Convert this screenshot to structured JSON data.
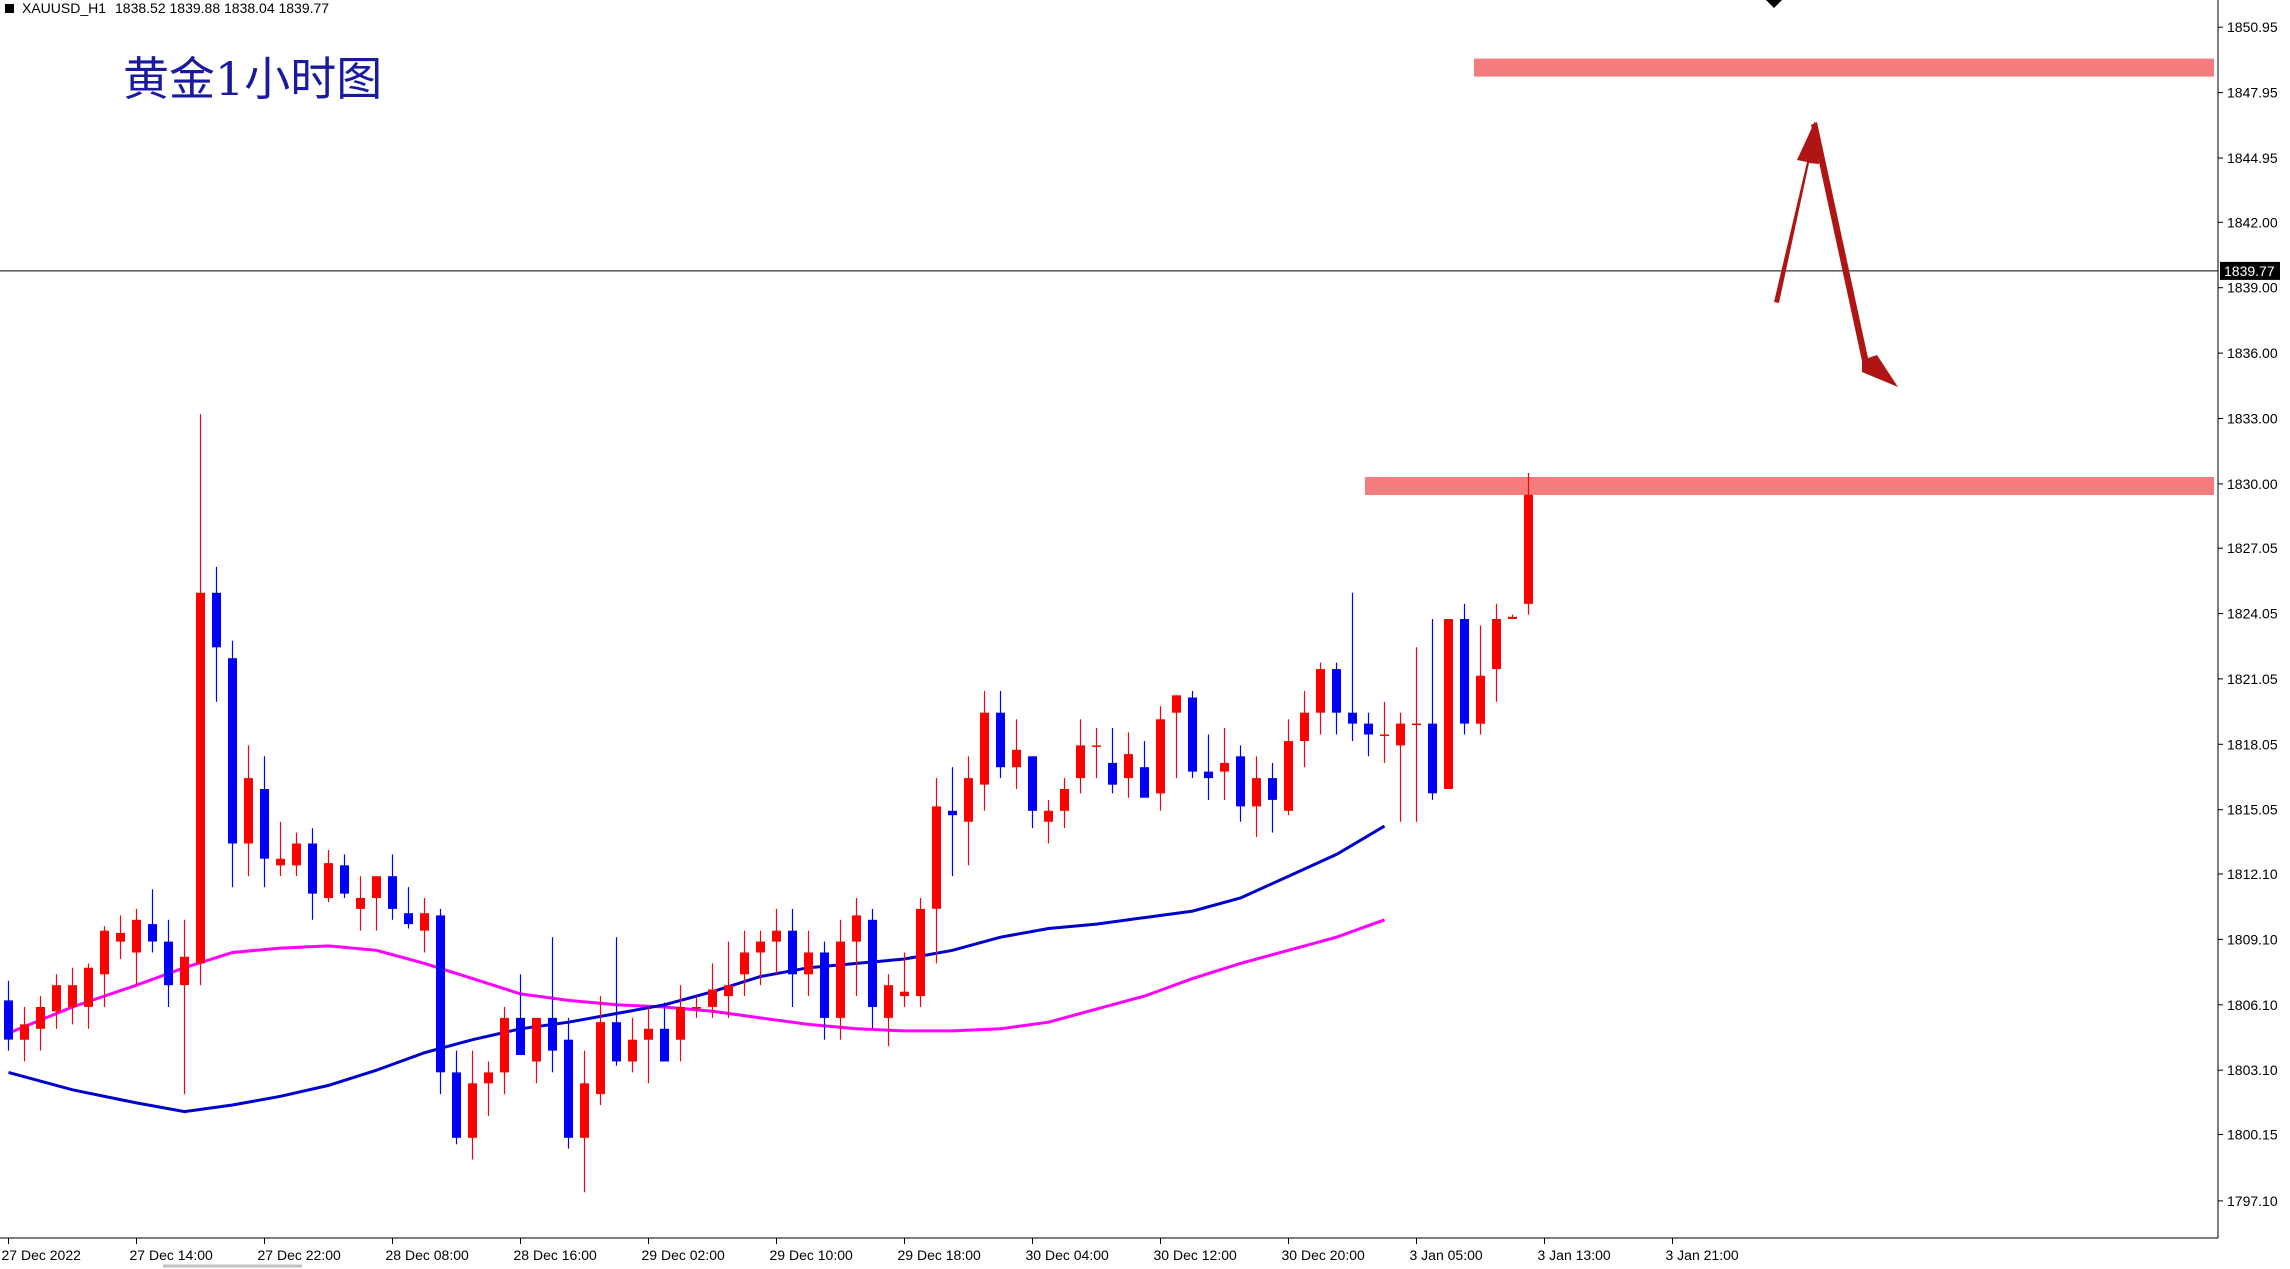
{
  "header": {
    "symbol_label": "XAUUSD_H1",
    "ohlc": "1838.52 1839.88 1838.04 1839.77"
  },
  "chart_title": "黄金1小时图",
  "current_price_label": "1839.77",
  "colors": {
    "bull": "#ff0000",
    "bear": "#0000ff",
    "ma_fast": "#0000cc",
    "ma_slow": "#ff00ff",
    "zone": "#f47c7c",
    "arrow": "#b01515",
    "axis": "#000000",
    "price_line": "#000000"
  },
  "chart_data": {
    "type": "candlestick",
    "y_axis_ticks": [
      1850.95,
      1847.95,
      1844.95,
      1842.0,
      1839.0,
      1836.0,
      1833.0,
      1830.0,
      1827.05,
      1824.05,
      1821.05,
      1818.05,
      1815.05,
      1812.1,
      1809.1,
      1806.1,
      1803.1,
      1800.15,
      1797.1
    ],
    "y_tick_labels": [
      "1850.95",
      "1847.95",
      "1844.95",
      "1842.00",
      "1839.00",
      "1836.00",
      "1833.00",
      "1830.00",
      "1827.05",
      "1824.05",
      "1821.05",
      "1818.05",
      "1815.05",
      "1812.10",
      "1809.10",
      "1806.10",
      "1803.10",
      "1800.15",
      "1797.10"
    ],
    "ylim": [
      1795.4,
      1852.2
    ],
    "x_tick_labels": [
      "27 Dec 2022",
      "27 Dec 14:00",
      "27 Dec 22:00",
      "28 Dec 08:00",
      "28 Dec 16:00",
      "29 Dec 02:00",
      "29 Dec 10:00",
      "29 Dec 18:00",
      "30 Dec 04:00",
      "30 Dec 12:00",
      "30 Dec 20:00",
      "3 Jan 05:00",
      "3 Jan 13:00",
      "3 Jan 21:00"
    ],
    "x_tick_bar_index": [
      0,
      8,
      16,
      24,
      32,
      40,
      48,
      56,
      64,
      72,
      80,
      88,
      96,
      104
    ],
    "candles": [
      [
        1806.3,
        1807.2,
        1804.0,
        1804.5
      ],
      [
        1804.5,
        1806.0,
        1803.5,
        1805.2
      ],
      [
        1805.0,
        1806.5,
        1804.0,
        1806.0
      ],
      [
        1805.8,
        1807.5,
        1805.0,
        1807.0
      ],
      [
        1806.0,
        1807.8,
        1805.2,
        1807.0
      ],
      [
        1806.0,
        1808.0,
        1805.0,
        1807.8
      ],
      [
        1807.5,
        1809.7,
        1806.0,
        1809.5
      ],
      [
        1809.0,
        1810.2,
        1808.2,
        1809.4
      ],
      [
        1808.5,
        1810.5,
        1807.0,
        1810.0
      ],
      [
        1809.8,
        1811.4,
        1808.5,
        1809.0
      ],
      [
        1809.0,
        1810.0,
        1806.0,
        1807.0
      ],
      [
        1807.0,
        1810.0,
        1802.0,
        1808.3
      ],
      [
        1808.0,
        1833.2,
        1807.0,
        1825.0
      ],
      [
        1825.0,
        1826.2,
        1820.0,
        1822.5
      ],
      [
        1822.0,
        1822.8,
        1811.5,
        1813.5
      ],
      [
        1813.5,
        1818.0,
        1812.0,
        1816.5
      ],
      [
        1816.0,
        1817.5,
        1811.5,
        1812.8
      ],
      [
        1812.5,
        1814.5,
        1812.0,
        1812.8
      ],
      [
        1812.5,
        1814.0,
        1812.0,
        1813.5
      ],
      [
        1813.5,
        1814.2,
        1810.0,
        1811.2
      ],
      [
        1811.0,
        1813.2,
        1810.8,
        1812.6
      ],
      [
        1812.5,
        1813.0,
        1811.0,
        1811.2
      ],
      [
        1810.5,
        1812.0,
        1809.5,
        1811.0
      ],
      [
        1811.0,
        1812.0,
        1809.5,
        1812.0
      ],
      [
        1812.0,
        1813.0,
        1810.0,
        1810.5
      ],
      [
        1810.3,
        1811.5,
        1809.6,
        1809.8
      ],
      [
        1809.5,
        1811.0,
        1808.5,
        1810.3
      ],
      [
        1810.2,
        1810.5,
        1802.0,
        1803.0
      ],
      [
        1803.0,
        1804.0,
        1799.7,
        1800.0
      ],
      [
        1800.0,
        1804.0,
        1799.0,
        1802.5
      ],
      [
        1802.5,
        1803.5,
        1801.0,
        1803.0
      ],
      [
        1803.0,
        1806.0,
        1802.0,
        1805.5
      ],
      [
        1805.5,
        1807.5,
        1803.8,
        1803.8
      ],
      [
        1803.5,
        1805.0,
        1802.5,
        1805.5
      ],
      [
        1805.5,
        1809.2,
        1803.0,
        1804.0
      ],
      [
        1804.5,
        1805.5,
        1799.5,
        1800.0
      ],
      [
        1800.0,
        1804.0,
        1797.5,
        1802.5
      ],
      [
        1802.0,
        1806.5,
        1801.5,
        1805.3
      ],
      [
        1805.3,
        1809.2,
        1803.3,
        1803.5
      ],
      [
        1803.5,
        1805.5,
        1803.0,
        1804.5
      ],
      [
        1804.5,
        1806.0,
        1802.5,
        1805.0
      ],
      [
        1805.0,
        1806.2,
        1803.5,
        1803.5
      ],
      [
        1804.5,
        1807.0,
        1803.5,
        1806.0
      ],
      [
        1806.0,
        1806.5,
        1805.5,
        1806.0
      ],
      [
        1806.0,
        1808.0,
        1805.5,
        1806.8
      ],
      [
        1806.5,
        1809.0,
        1805.5,
        1807.0
      ],
      [
        1807.5,
        1809.5,
        1806.5,
        1808.5
      ],
      [
        1808.5,
        1809.5,
        1807.0,
        1809.0
      ],
      [
        1809.0,
        1810.5,
        1807.5,
        1809.5
      ],
      [
        1809.5,
        1810.5,
        1806.0,
        1807.5
      ],
      [
        1807.5,
        1809.5,
        1806.5,
        1808.5
      ],
      [
        1808.5,
        1809.0,
        1804.5,
        1805.5
      ],
      [
        1805.5,
        1810.0,
        1804.5,
        1809.0
      ],
      [
        1809.0,
        1811.0,
        1806.5,
        1810.2
      ],
      [
        1810.0,
        1810.5,
        1805.0,
        1806.0
      ],
      [
        1805.5,
        1807.5,
        1804.2,
        1807.0
      ],
      [
        1806.5,
        1808.5,
        1806.0,
        1806.7
      ],
      [
        1806.5,
        1811.0,
        1806.0,
        1810.5
      ],
      [
        1810.5,
        1816.5,
        1808.0,
        1815.2
      ],
      [
        1815.0,
        1817.0,
        1812.0,
        1814.8
      ],
      [
        1814.5,
        1817.5,
        1812.5,
        1816.5
      ],
      [
        1816.2,
        1820.5,
        1815.0,
        1819.5
      ],
      [
        1819.5,
        1820.5,
        1816.5,
        1817.0
      ],
      [
        1817.0,
        1819.2,
        1816.0,
        1817.8
      ],
      [
        1817.5,
        1817.5,
        1814.2,
        1815.0
      ],
      [
        1814.5,
        1815.5,
        1813.5,
        1815.0
      ],
      [
        1815.0,
        1816.5,
        1814.2,
        1816.0
      ],
      [
        1816.5,
        1819.2,
        1815.8,
        1818.0
      ],
      [
        1818.0,
        1818.8,
        1816.5,
        1818.0
      ],
      [
        1817.2,
        1818.8,
        1815.8,
        1816.2
      ],
      [
        1816.5,
        1818.6,
        1815.6,
        1817.6
      ],
      [
        1817.0,
        1818.2,
        1815.6,
        1815.6
      ],
      [
        1815.8,
        1819.8,
        1815.0,
        1819.2
      ],
      [
        1819.5,
        1820.3,
        1816.5,
        1820.3
      ],
      [
        1820.2,
        1820.5,
        1816.5,
        1816.8
      ],
      [
        1816.8,
        1818.5,
        1815.5,
        1816.5
      ],
      [
        1816.8,
        1818.8,
        1815.5,
        1817.2
      ],
      [
        1817.5,
        1818.0,
        1814.5,
        1815.2
      ],
      [
        1815.2,
        1817.5,
        1813.8,
        1816.5
      ],
      [
        1816.5,
        1817.2,
        1814.0,
        1815.5
      ],
      [
        1815.0,
        1819.2,
        1814.8,
        1818.2
      ],
      [
        1818.2,
        1820.5,
        1817.0,
        1819.5
      ],
      [
        1819.5,
        1821.8,
        1818.5,
        1821.5
      ],
      [
        1821.5,
        1821.8,
        1818.5,
        1819.5
      ],
      [
        1819.5,
        1825.0,
        1818.2,
        1819.0
      ],
      [
        1819.0,
        1819.5,
        1817.5,
        1818.5
      ],
      [
        1818.5,
        1820.0,
        1817.2,
        1818.5
      ],
      [
        1818.0,
        1819.5,
        1814.5,
        1819.0
      ],
      [
        1819.0,
        1822.5,
        1814.5,
        1819.0
      ],
      [
        1819.0,
        1823.8,
        1815.5,
        1815.8
      ],
      [
        1816.0,
        1823.8,
        1816.0,
        1823.8
      ],
      [
        1823.8,
        1824.5,
        1818.5,
        1819.0
      ],
      [
        1819.0,
        1823.5,
        1818.5,
        1821.2
      ],
      [
        1821.5,
        1824.5,
        1820.0,
        1823.8
      ],
      [
        1823.8,
        1824.0,
        1823.8,
        1823.9
      ],
      [
        1824.5,
        1830.5,
        1824.0,
        1829.5
      ]
    ]
  },
  "ma_fast_points": [
    [
      0,
      1803.0
    ],
    [
      4,
      1802.2
    ],
    [
      8,
      1801.6
    ],
    [
      11,
      1801.2
    ],
    [
      14,
      1801.5
    ],
    [
      17,
      1801.9
    ],
    [
      20,
      1802.4
    ],
    [
      23,
      1803.1
    ],
    [
      26,
      1803.9
    ],
    [
      29,
      1804.5
    ],
    [
      32,
      1805.0
    ],
    [
      35,
      1805.3
    ],
    [
      38,
      1805.7
    ],
    [
      41,
      1806.1
    ],
    [
      44,
      1806.7
    ],
    [
      47,
      1807.4
    ],
    [
      50,
      1807.8
    ],
    [
      53,
      1808.0
    ],
    [
      56,
      1808.2
    ],
    [
      59,
      1808.6
    ],
    [
      62,
      1809.2
    ],
    [
      65,
      1809.6
    ],
    [
      68,
      1809.8
    ],
    [
      71,
      1810.1
    ],
    [
      74,
      1810.4
    ],
    [
      77,
      1811.0
    ],
    [
      80,
      1812.0
    ],
    [
      83,
      1813.0
    ],
    [
      86,
      1814.3
    ]
  ],
  "ma_slow_points": [
    [
      0,
      1804.8
    ],
    [
      4,
      1806.0
    ],
    [
      8,
      1807.0
    ],
    [
      11,
      1807.8
    ],
    [
      14,
      1808.5
    ],
    [
      17,
      1808.7
    ],
    [
      20,
      1808.8
    ],
    [
      23,
      1808.6
    ],
    [
      26,
      1808.0
    ],
    [
      29,
      1807.3
    ],
    [
      32,
      1806.6
    ],
    [
      35,
      1806.3
    ],
    [
      38,
      1806.1
    ],
    [
      41,
      1806.0
    ],
    [
      44,
      1805.8
    ],
    [
      47,
      1805.5
    ],
    [
      50,
      1805.2
    ],
    [
      53,
      1805.0
    ],
    [
      56,
      1804.9
    ],
    [
      59,
      1804.9
    ],
    [
      62,
      1805.0
    ],
    [
      65,
      1805.3
    ],
    [
      68,
      1805.9
    ],
    [
      71,
      1806.5
    ],
    [
      74,
      1807.3
    ],
    [
      77,
      1808.0
    ],
    [
      80,
      1808.6
    ],
    [
      83,
      1809.2
    ],
    [
      86,
      1810.0
    ]
  ],
  "zones": [
    {
      "name": "resistance",
      "price": 1849.1
    },
    {
      "name": "support",
      "price": 1829.9
    }
  ]
}
